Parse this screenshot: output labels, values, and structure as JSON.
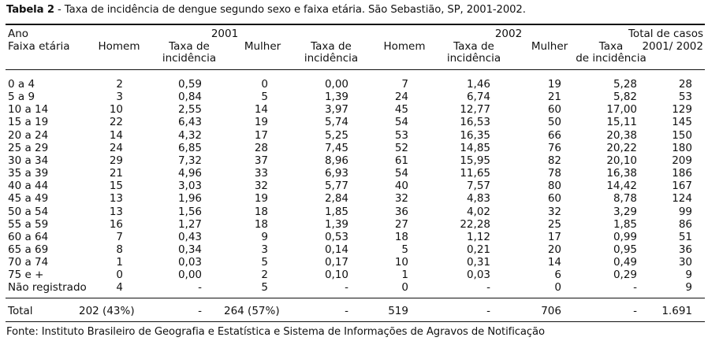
{
  "table": {
    "caption_label": "Tabela 2",
    "caption_text": " - Taxa de incidência de dengue segundo sexo e faixa etária. São Sebastião, SP, 2001-2002.",
    "header": {
      "ano": "Ano",
      "faixa": "Faixa etária",
      "y2001": "2001",
      "y2002": "2002",
      "total": "Total de casos",
      "total_sub": "2001/ 2002",
      "homem": "Homem",
      "mulher": "Mulher",
      "taxa_line1": "Taxa de",
      "taxa_line2": "incidência",
      "taxa_short": "Taxa",
      "taxa_short2": "de incidência"
    },
    "rows": [
      [
        "0 a 4",
        "2",
        "0,59",
        "0",
        "0,00",
        "7",
        "1,46",
        "19",
        "5,28",
        "28"
      ],
      [
        "5 a 9",
        "3",
        "0,84",
        "5",
        "1,39",
        "24",
        "6,74",
        "21",
        "5,82",
        "53"
      ],
      [
        "10 a 14",
        "10",
        "2,55",
        "14",
        "3,97",
        "45",
        "12,77",
        "60",
        "17,00",
        "129"
      ],
      [
        "15 a 19",
        "22",
        "6,43",
        "19",
        "5,74",
        "54",
        "16,53",
        "50",
        "15,11",
        "145"
      ],
      [
        "20 a 24",
        "14",
        "4,32",
        "17",
        "5,25",
        "53",
        "16,35",
        "66",
        "20,38",
        "150"
      ],
      [
        "25 a 29",
        "24",
        "6,85",
        "28",
        "7,45",
        "52",
        "14,85",
        "76",
        "20,22",
        "180"
      ],
      [
        "30 a 34",
        "29",
        "7,32",
        "37",
        "8,96",
        "61",
        "15,95",
        "82",
        "20,10",
        "209"
      ],
      [
        "35 a 39",
        "21",
        "4,96",
        "33",
        "6,93",
        "54",
        "11,65",
        "78",
        "16,38",
        "186"
      ],
      [
        "40 a 44",
        "15",
        "3,03",
        "32",
        "5,77",
        "40",
        "7,57",
        "80",
        "14,42",
        "167"
      ],
      [
        "45 a 49",
        "13",
        "1,96",
        "19",
        "2,84",
        "32",
        "4,83",
        "60",
        "8,78",
        "124"
      ],
      [
        "50 a 54",
        "13",
        "1,56",
        "18",
        "1,85",
        "36",
        "4,02",
        "32",
        "3,29",
        "99"
      ],
      [
        "55 a 59",
        "16",
        "1,27",
        "18",
        "1,39",
        "27",
        "22,28",
        "25",
        "1,85",
        "86"
      ],
      [
        "60 a 64",
        "7",
        "0,43",
        "9",
        "0,53",
        "18",
        "1,12",
        "17",
        "0,99",
        "51"
      ],
      [
        "65 a 69",
        "8",
        "0,34",
        "3",
        "0,14",
        "5",
        "0,21",
        "20",
        "0,95",
        "36"
      ],
      [
        "70 a 74",
        "1",
        "0,03",
        "5",
        "0,17",
        "10",
        "0,31",
        "14",
        "0,49",
        "30"
      ],
      [
        "75 e +",
        "0",
        "0,00",
        "2",
        "0,10",
        "1",
        "0,03",
        "6",
        "0,29",
        "9"
      ],
      [
        "Não registrado",
        "4",
        "-",
        "5",
        "-",
        "0",
        "-",
        "0",
        "-",
        "9"
      ]
    ],
    "total_row": [
      "Total",
      "202 (43%)",
      "-",
      "264 (57%)",
      "-",
      "519",
      "-",
      "706",
      "-",
      "1.691"
    ],
    "source": "Fonte: Instituto Brasileiro de Geografia e Estatística e Sistema de Informações de Agravos de Notificação"
  }
}
